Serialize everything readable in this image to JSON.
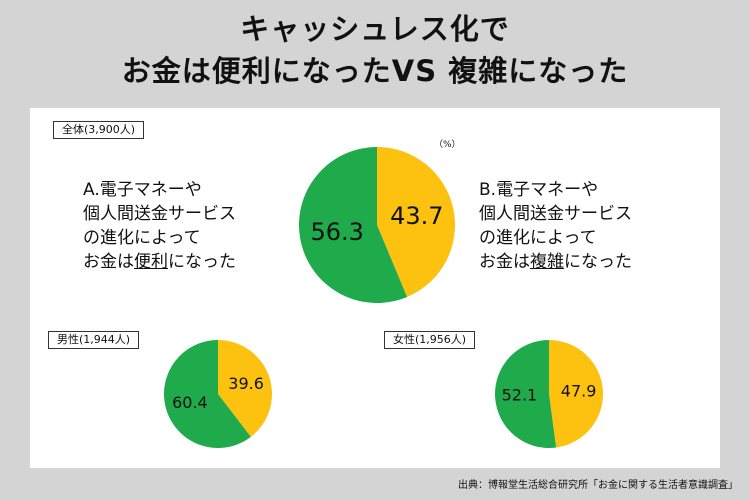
{
  "title": {
    "line1": "キャッシュレス化で",
    "line2": "お金は便利になったVS 複雑になった"
  },
  "unit_note": "（%）",
  "option_a": {
    "prefix": "A.電子マネーや",
    "line2": "個人間送金サービス",
    "line3": "の進化によって",
    "line4_pre": "お金は",
    "keyword": "便利",
    "line4_post": "になった"
  },
  "option_b": {
    "prefix": "B.電子マネーや",
    "line2": "個人間送金サービス",
    "line3": "の進化によって",
    "line4_pre": "お金は",
    "keyword": "複雑",
    "line4_post": "になった"
  },
  "source": "出典：博報堂生活総合研究所「お金に関する生活者意識調査」",
  "colors": {
    "convenient": "#1faa4b",
    "complex": "#fdc10f"
  },
  "chart_data": [
    {
      "type": "pie",
      "label": "全体(3,900人)",
      "slices": [
        {
          "name": "便利になった",
          "value": 56.3,
          "label": "56.3",
          "color": "#1faa4b"
        },
        {
          "name": "複雑になった",
          "value": 43.7,
          "label": "43.7",
          "color": "#fdc10f"
        }
      ]
    },
    {
      "type": "pie",
      "label": "男性(1,944人)",
      "slices": [
        {
          "name": "便利になった",
          "value": 60.4,
          "label": "60.4",
          "color": "#1faa4b"
        },
        {
          "name": "複雑になった",
          "value": 39.6,
          "label": "39.6",
          "color": "#fdc10f"
        }
      ]
    },
    {
      "type": "pie",
      "label": "女性(1,956人)",
      "slices": [
        {
          "name": "便利になった",
          "value": 52.1,
          "label": "52.1",
          "color": "#1faa4b"
        },
        {
          "name": "複雑になった",
          "value": 47.9,
          "label": "47.9",
          "color": "#fdc10f"
        }
      ]
    }
  ]
}
